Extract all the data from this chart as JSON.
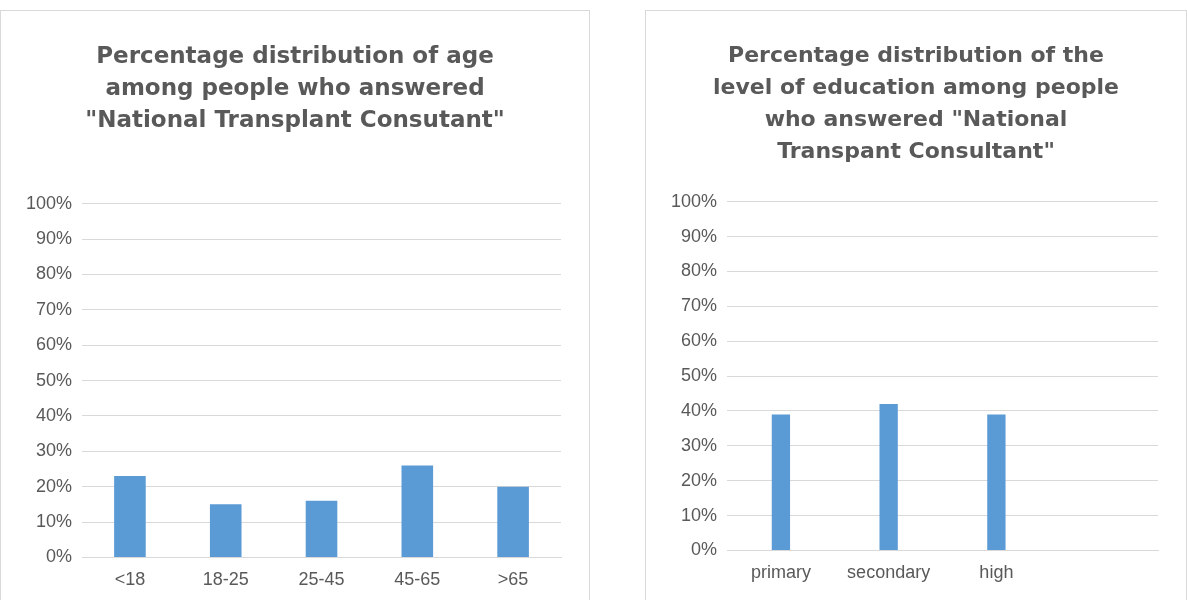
{
  "chart_data": [
    {
      "type": "bar",
      "title": "Percentage distribution of age among people who answered \"National Transplant Consutant\"",
      "categories": [
        "<18",
        "18-25",
        "25-45",
        "45-65",
        ">65"
      ],
      "values": [
        23,
        15,
        16,
        26,
        20
      ],
      "color": "#5b9bd5",
      "ylim": [
        0,
        100
      ],
      "yticks": [
        {
          "value": 0,
          "label": "0%"
        },
        {
          "value": 10,
          "label": "10%"
        },
        {
          "value": 20,
          "label": "20%"
        },
        {
          "value": 30,
          "label": "30%"
        },
        {
          "value": 40,
          "label": "40%"
        },
        {
          "value": 50,
          "label": "50%"
        },
        {
          "value": 60,
          "label": "60%"
        },
        {
          "value": 70,
          "label": "70%"
        },
        {
          "value": 80,
          "label": "80%"
        },
        {
          "value": 90,
          "label": "90%"
        },
        {
          "value": 100,
          "label": "100%"
        }
      ],
      "grid": "y"
    },
    {
      "type": "bar",
      "title": "Percentage distribution of the level of education among people who answered \"National Transpant Consultant\"",
      "categories": [
        "primary",
        "secondary",
        "high",
        null
      ],
      "values": [
        39,
        42,
        39,
        null
      ],
      "color": "#5b9bd5",
      "ylim": [
        0,
        100
      ],
      "yticks": [
        {
          "value": 0,
          "label": "0%"
        },
        {
          "value": 10,
          "label": "10%"
        },
        {
          "value": 20,
          "label": "20%"
        },
        {
          "value": 30,
          "label": "30%"
        },
        {
          "value": 40,
          "label": "40%"
        },
        {
          "value": 50,
          "label": "50%"
        },
        {
          "value": 60,
          "label": "60%"
        },
        {
          "value": 70,
          "label": "70%"
        },
        {
          "value": 80,
          "label": "80%"
        },
        {
          "value": 90,
          "label": "90%"
        },
        {
          "value": 100,
          "label": "100%"
        }
      ],
      "grid": "y"
    }
  ]
}
